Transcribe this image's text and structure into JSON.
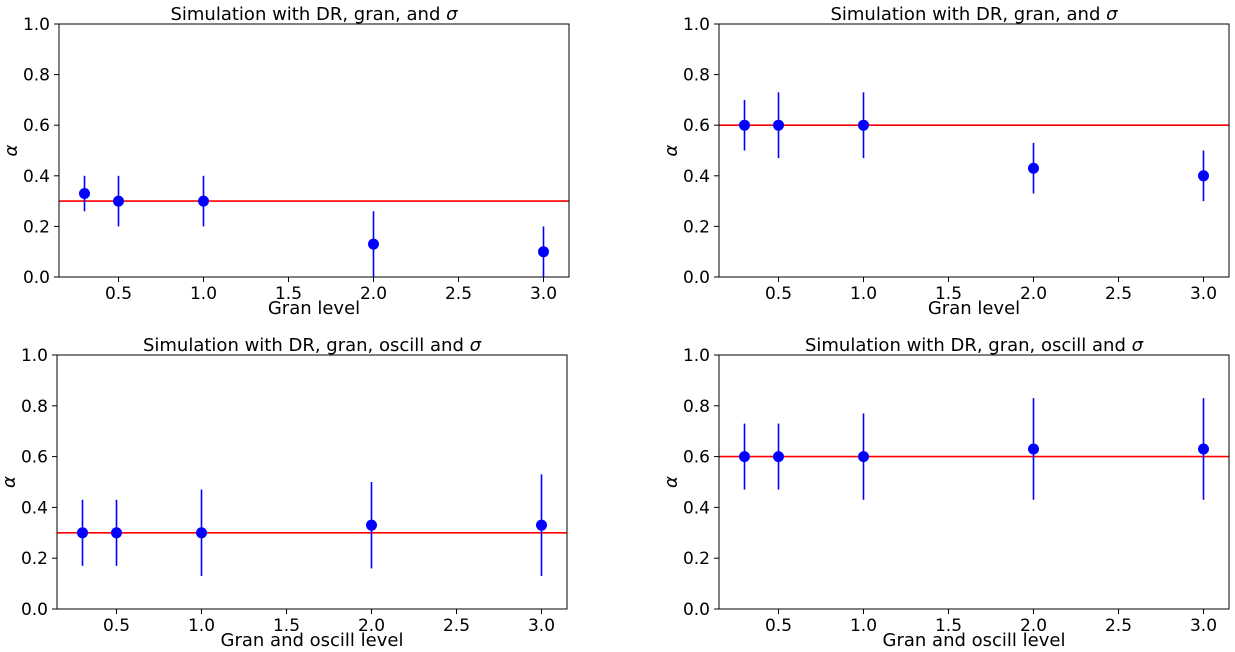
{
  "chart_data": [
    {
      "type": "scatter",
      "title_prefix": "Simulation with DR, gran, and ",
      "title_symbol": "σ",
      "xlabel": "Gran level",
      "ylabel": "α",
      "xlim": [
        0.15,
        3.15
      ],
      "ylim": [
        0.0,
        1.0
      ],
      "xticks": [
        "0.5",
        "1.0",
        "1.5",
        "2.0",
        "2.5",
        "3.0"
      ],
      "yticks": [
        "0.0",
        "0.2",
        "0.4",
        "0.6",
        "0.8",
        "1.0"
      ],
      "reference_line": 0.3,
      "points": [
        {
          "x": 0.3,
          "y": 0.33,
          "err_low": 0.26,
          "err_high": 0.4
        },
        {
          "x": 0.5,
          "y": 0.3,
          "err_low": 0.2,
          "err_high": 0.4
        },
        {
          "x": 1.0,
          "y": 0.3,
          "err_low": 0.2,
          "err_high": 0.4
        },
        {
          "x": 2.0,
          "y": 0.13,
          "err_low": 0.0,
          "err_high": 0.26
        },
        {
          "x": 3.0,
          "y": 0.1,
          "err_low": 0.0,
          "err_high": 0.2
        }
      ],
      "grid": false
    },
    {
      "type": "scatter",
      "title_prefix": "Simulation with DR, gran, and ",
      "title_symbol": "σ",
      "xlabel": "Gran level",
      "ylabel": "α",
      "xlim": [
        0.15,
        3.15
      ],
      "ylim": [
        0.0,
        1.0
      ],
      "xticks": [
        "0.5",
        "1.0",
        "1.5",
        "2.0",
        "2.5",
        "3.0"
      ],
      "yticks": [
        "0.0",
        "0.2",
        "0.4",
        "0.6",
        "0.8",
        "1.0"
      ],
      "reference_line": 0.6,
      "points": [
        {
          "x": 0.3,
          "y": 0.6,
          "err_low": 0.5,
          "err_high": 0.7
        },
        {
          "x": 0.5,
          "y": 0.6,
          "err_low": 0.47,
          "err_high": 0.73
        },
        {
          "x": 1.0,
          "y": 0.6,
          "err_low": 0.47,
          "err_high": 0.73
        },
        {
          "x": 2.0,
          "y": 0.43,
          "err_low": 0.33,
          "err_high": 0.53
        },
        {
          "x": 3.0,
          "y": 0.4,
          "err_low": 0.3,
          "err_high": 0.5
        }
      ],
      "grid": false
    },
    {
      "type": "scatter",
      "title_prefix": "Simulation with DR, gran, oscill and ",
      "title_symbol": "σ",
      "xlabel": "Gran and oscill level",
      "ylabel": "α",
      "xlim": [
        0.15,
        3.15
      ],
      "ylim": [
        0.0,
        1.0
      ],
      "xticks": [
        "0.5",
        "1.0",
        "1.5",
        "2.0",
        "2.5",
        "3.0"
      ],
      "yticks": [
        "0.0",
        "0.2",
        "0.4",
        "0.6",
        "0.8",
        "1.0"
      ],
      "reference_line": 0.3,
      "points": [
        {
          "x": 0.3,
          "y": 0.3,
          "err_low": 0.17,
          "err_high": 0.43
        },
        {
          "x": 0.5,
          "y": 0.3,
          "err_low": 0.17,
          "err_high": 0.43
        },
        {
          "x": 1.0,
          "y": 0.3,
          "err_low": 0.13,
          "err_high": 0.47
        },
        {
          "x": 2.0,
          "y": 0.33,
          "err_low": 0.16,
          "err_high": 0.5
        },
        {
          "x": 3.0,
          "y": 0.33,
          "err_low": 0.13,
          "err_high": 0.53
        }
      ],
      "grid": false
    },
    {
      "type": "scatter",
      "title_prefix": "Simulation with DR, gran, oscill and ",
      "title_symbol": "σ",
      "xlabel": "Gran and oscill level",
      "ylabel": "α",
      "xlim": [
        0.15,
        3.15
      ],
      "ylim": [
        0.0,
        1.0
      ],
      "xticks": [
        "0.5",
        "1.0",
        "1.5",
        "2.0",
        "2.5",
        "3.0"
      ],
      "yticks": [
        "0.0",
        "0.2",
        "0.4",
        "0.6",
        "0.8",
        "1.0"
      ],
      "reference_line": 0.6,
      "points": [
        {
          "x": 0.3,
          "y": 0.6,
          "err_low": 0.47,
          "err_high": 0.73
        },
        {
          "x": 0.5,
          "y": 0.6,
          "err_low": 0.47,
          "err_high": 0.73
        },
        {
          "x": 1.0,
          "y": 0.6,
          "err_low": 0.43,
          "err_high": 0.77
        },
        {
          "x": 2.0,
          "y": 0.63,
          "err_low": 0.43,
          "err_high": 0.83
        },
        {
          "x": 3.0,
          "y": 0.63,
          "err_low": 0.43,
          "err_high": 0.83
        }
      ],
      "grid": false
    }
  ],
  "colors": {
    "marker": "#0000ff",
    "errorbar": "#0000ff",
    "reference_line": "#ff0000",
    "axes": "#000000"
  }
}
